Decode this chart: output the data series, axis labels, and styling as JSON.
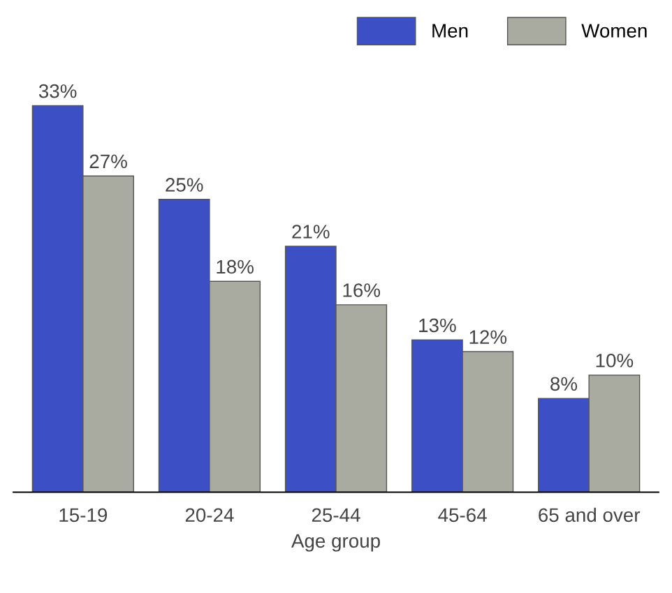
{
  "chart_data": {
    "type": "bar",
    "xlabel": "Age group",
    "categories": [
      "15-19",
      "20-24",
      "25-44",
      "45-64",
      "65 and over"
    ],
    "series": [
      {
        "name": "Men",
        "color": "#3d4fc4",
        "values": [
          33,
          25,
          21,
          13,
          8
        ],
        "value_labels": [
          "33%",
          "25%",
          "21%",
          "13%",
          "8%"
        ]
      },
      {
        "name": "Women",
        "color": "#a9aba1",
        "values": [
          27,
          18,
          16,
          12,
          10
        ],
        "value_labels": [
          "27%",
          "18%",
          "16%",
          "12%",
          "10%"
        ]
      }
    ],
    "legend": "top right",
    "grid": false
  }
}
